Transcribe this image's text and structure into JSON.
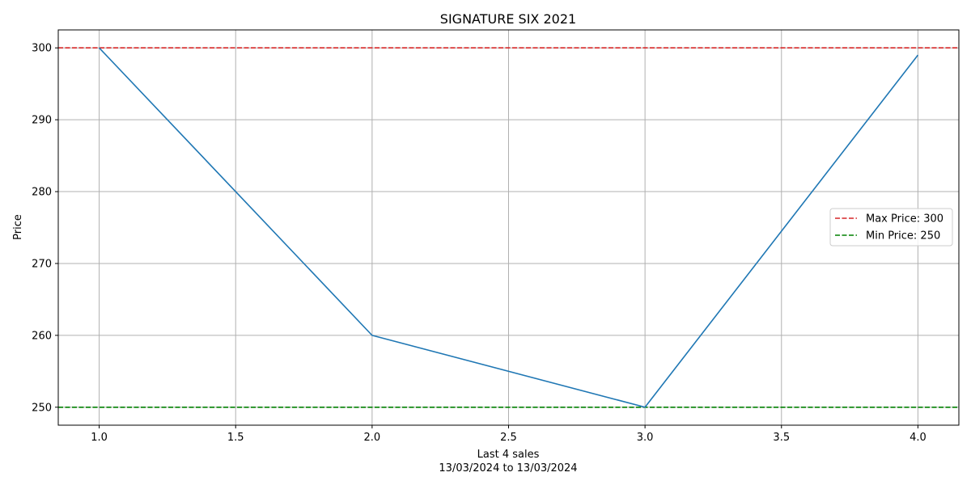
{
  "chart_data": {
    "type": "line",
    "title": "SIGNATURE SIX 2021",
    "xlabel_line1": "Last 4 sales",
    "xlabel_line2": "13/03/2024 to 13/03/2024",
    "ylabel": "Price",
    "x": [
      1.0,
      2.0,
      3.0,
      4.0
    ],
    "series": [
      {
        "values": [
          300,
          260,
          250,
          299
        ],
        "color": "#1f77b4"
      }
    ],
    "reference_lines": [
      {
        "name": "Max Price: 300",
        "value": 300,
        "color": "#d62728",
        "style": "dashed"
      },
      {
        "name": "Min Price: 250",
        "value": 250,
        "color": "#008000",
        "style": "dashed"
      }
    ],
    "xlim": [
      0.85,
      4.15
    ],
    "ylim": [
      247.5,
      302.5
    ],
    "xticks": [
      "1.0",
      "1.5",
      "2.0",
      "2.5",
      "3.0",
      "3.5",
      "4.0"
    ],
    "yticks": [
      "250",
      "260",
      "270",
      "280",
      "290",
      "300"
    ],
    "grid": true,
    "legend_position": "center-right"
  }
}
